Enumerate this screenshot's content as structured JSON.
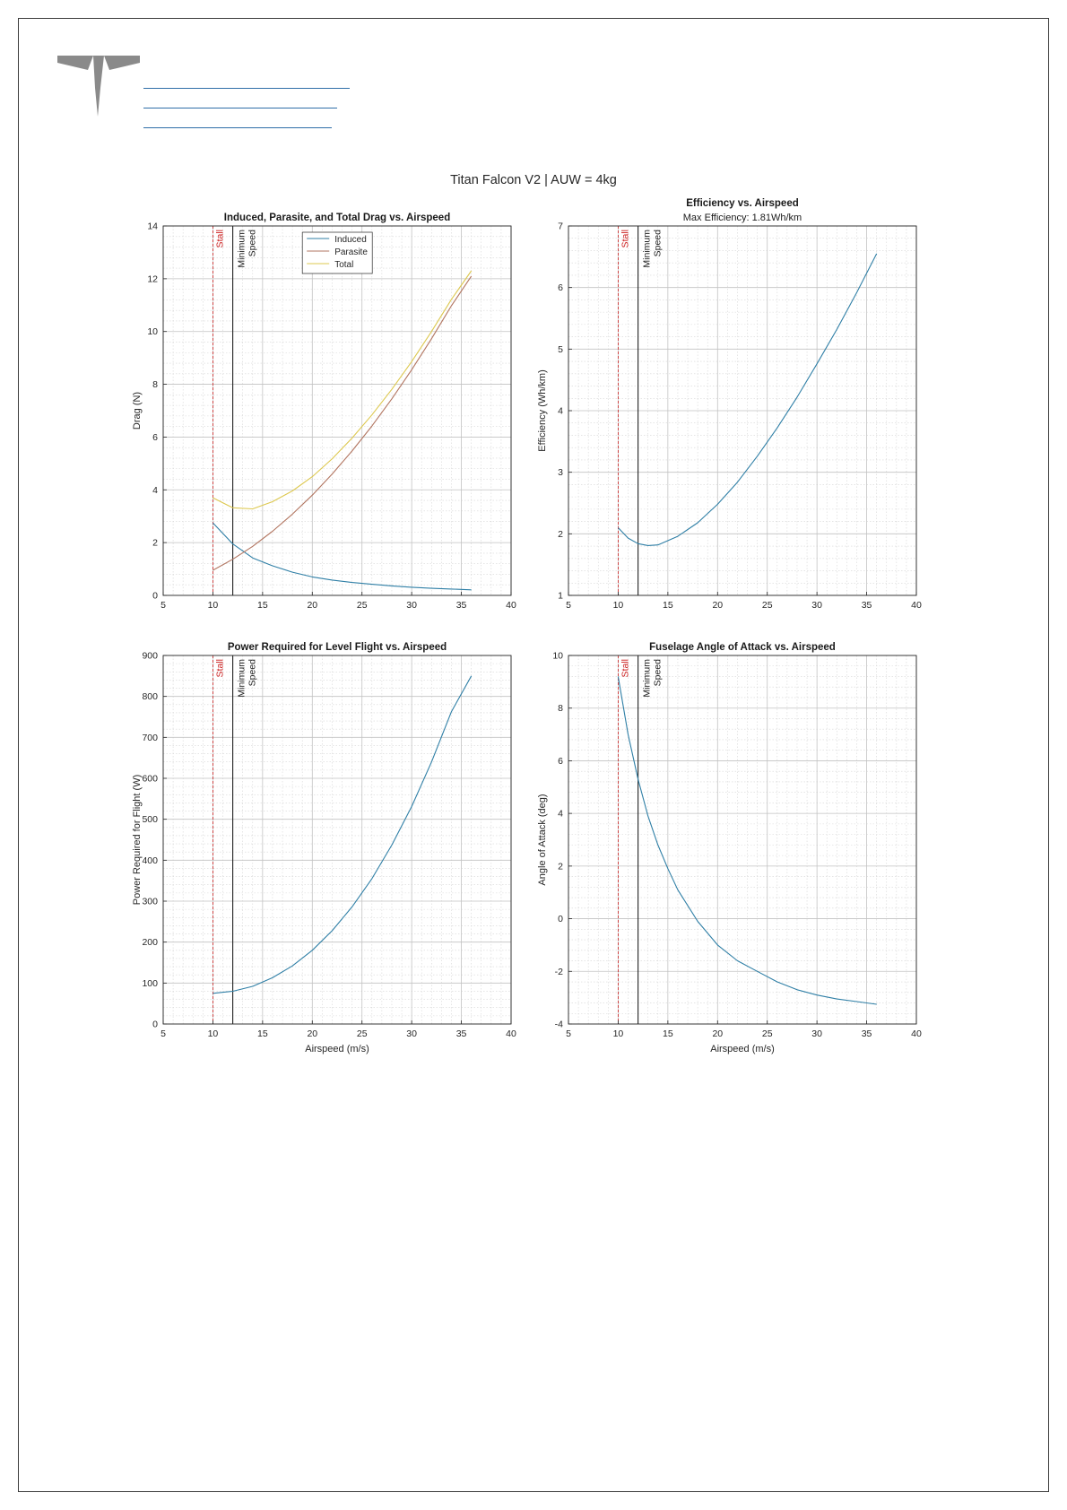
{
  "document": {
    "title": "Titan Falcon V2 | AUW = 4kg"
  },
  "colors": {
    "induced": "#2f7fa6",
    "parasite": "#b27560",
    "total": "#ddc84f",
    "stall": "#cc2222",
    "minimum_speed": "#222222",
    "link_underline": "#2f6ea8",
    "logo": "#8a8a8a"
  },
  "markers": {
    "stall": {
      "x": 10,
      "label": "Stall"
    },
    "minimum_speed": {
      "x": 12,
      "label_line1": "Minimum",
      "label_line2": "Speed"
    }
  },
  "chart_data": [
    {
      "type": "line",
      "title": "Induced, Parasite, and Total Drag vs. Airspeed",
      "subtitle": "",
      "xlabel": "",
      "ylabel": "Drag (N)",
      "xlim": [
        5,
        40
      ],
      "ylim": [
        0,
        14
      ],
      "xticks": [
        5,
        10,
        15,
        20,
        25,
        30,
        35,
        40
      ],
      "yticks": [
        0,
        2,
        4,
        6,
        8,
        10,
        12,
        14
      ],
      "grid": true,
      "minor_grid": true,
      "legend": "top-center",
      "x": [
        10,
        12,
        14,
        16,
        18,
        20,
        22,
        24,
        26,
        28,
        30,
        32,
        34,
        36
      ],
      "series": [
        {
          "name": "Induced",
          "color_key": "induced",
          "values": [
            2.75,
            1.95,
            1.42,
            1.12,
            0.88,
            0.7,
            0.58,
            0.49,
            0.42,
            0.36,
            0.31,
            0.27,
            0.24,
            0.21
          ]
        },
        {
          "name": "Parasite",
          "color_key": "parasite",
          "values": [
            0.95,
            1.37,
            1.86,
            2.43,
            3.08,
            3.8,
            4.6,
            5.47,
            6.42,
            7.45,
            8.55,
            9.73,
            10.98,
            12.1
          ]
        },
        {
          "name": "Total",
          "color_key": "total",
          "values": [
            3.7,
            3.32,
            3.28,
            3.55,
            3.96,
            4.5,
            5.18,
            5.96,
            6.84,
            7.81,
            8.86,
            10.0,
            11.22,
            12.3
          ]
        }
      ]
    },
    {
      "type": "line",
      "title": "Efficiency vs. Airspeed",
      "subtitle": "Max Efficiency: 1.81Wh/km",
      "xlabel": "",
      "ylabel": "Efficiency (Wh/km)",
      "xlim": [
        5,
        40
      ],
      "ylim": [
        1,
        7
      ],
      "xticks": [
        5,
        10,
        15,
        20,
        25,
        30,
        35,
        40
      ],
      "yticks": [
        1,
        2,
        3,
        4,
        5,
        6,
        7
      ],
      "grid": true,
      "minor_grid": true,
      "x": [
        10,
        11,
        12,
        13,
        14,
        16,
        18,
        20,
        22,
        24,
        26,
        28,
        30,
        32,
        34,
        36
      ],
      "series": [
        {
          "color_key": "induced",
          "values": [
            2.1,
            1.93,
            1.84,
            1.81,
            1.82,
            1.96,
            2.18,
            2.48,
            2.84,
            3.26,
            3.72,
            4.22,
            4.76,
            5.32,
            5.92,
            6.55
          ]
        }
      ]
    },
    {
      "type": "line",
      "title": "Power Required for Level Flight vs. Airspeed",
      "subtitle": "",
      "xlabel": "Airspeed (m/s)",
      "ylabel": "Power Required for Flight (W)",
      "xlim": [
        5,
        40
      ],
      "ylim": [
        0,
        900
      ],
      "xticks": [
        5,
        10,
        15,
        20,
        25,
        30,
        35,
        40
      ],
      "yticks": [
        0,
        100,
        200,
        300,
        400,
        500,
        600,
        700,
        800,
        900
      ],
      "grid": true,
      "minor_grid": true,
      "x": [
        10,
        12,
        14,
        16,
        18,
        20,
        22,
        24,
        26,
        28,
        30,
        32,
        34,
        36
      ],
      "series": [
        {
          "color_key": "induced",
          "values": [
            75,
            80,
            92,
            113,
            142,
            180,
            228,
            286,
            355,
            437,
            531,
            640,
            763,
            850
          ]
        }
      ]
    },
    {
      "type": "line",
      "title": "Fuselage Angle of Attack vs. Airspeed",
      "subtitle": "",
      "xlabel": "Airspeed (m/s)",
      "ylabel": "Angle of Attack (deg)",
      "xlim": [
        5,
        40
      ],
      "ylim": [
        -4,
        10
      ],
      "xticks": [
        5,
        10,
        15,
        20,
        25,
        30,
        35,
        40
      ],
      "yticks": [
        -4,
        -2,
        0,
        2,
        4,
        6,
        8,
        10
      ],
      "grid": true,
      "minor_grid": true,
      "x": [
        10,
        11,
        12,
        13,
        14,
        15,
        16,
        18,
        20,
        22,
        24,
        26,
        28,
        30,
        32,
        34,
        36
      ],
      "series": [
        {
          "color_key": "induced",
          "values": [
            9.2,
            7.0,
            5.3,
            3.9,
            2.8,
            1.9,
            1.1,
            -0.1,
            -1.0,
            -1.6,
            -2.0,
            -2.4,
            -2.7,
            -2.9,
            -3.05,
            -3.15,
            -3.25
          ]
        }
      ]
    }
  ]
}
